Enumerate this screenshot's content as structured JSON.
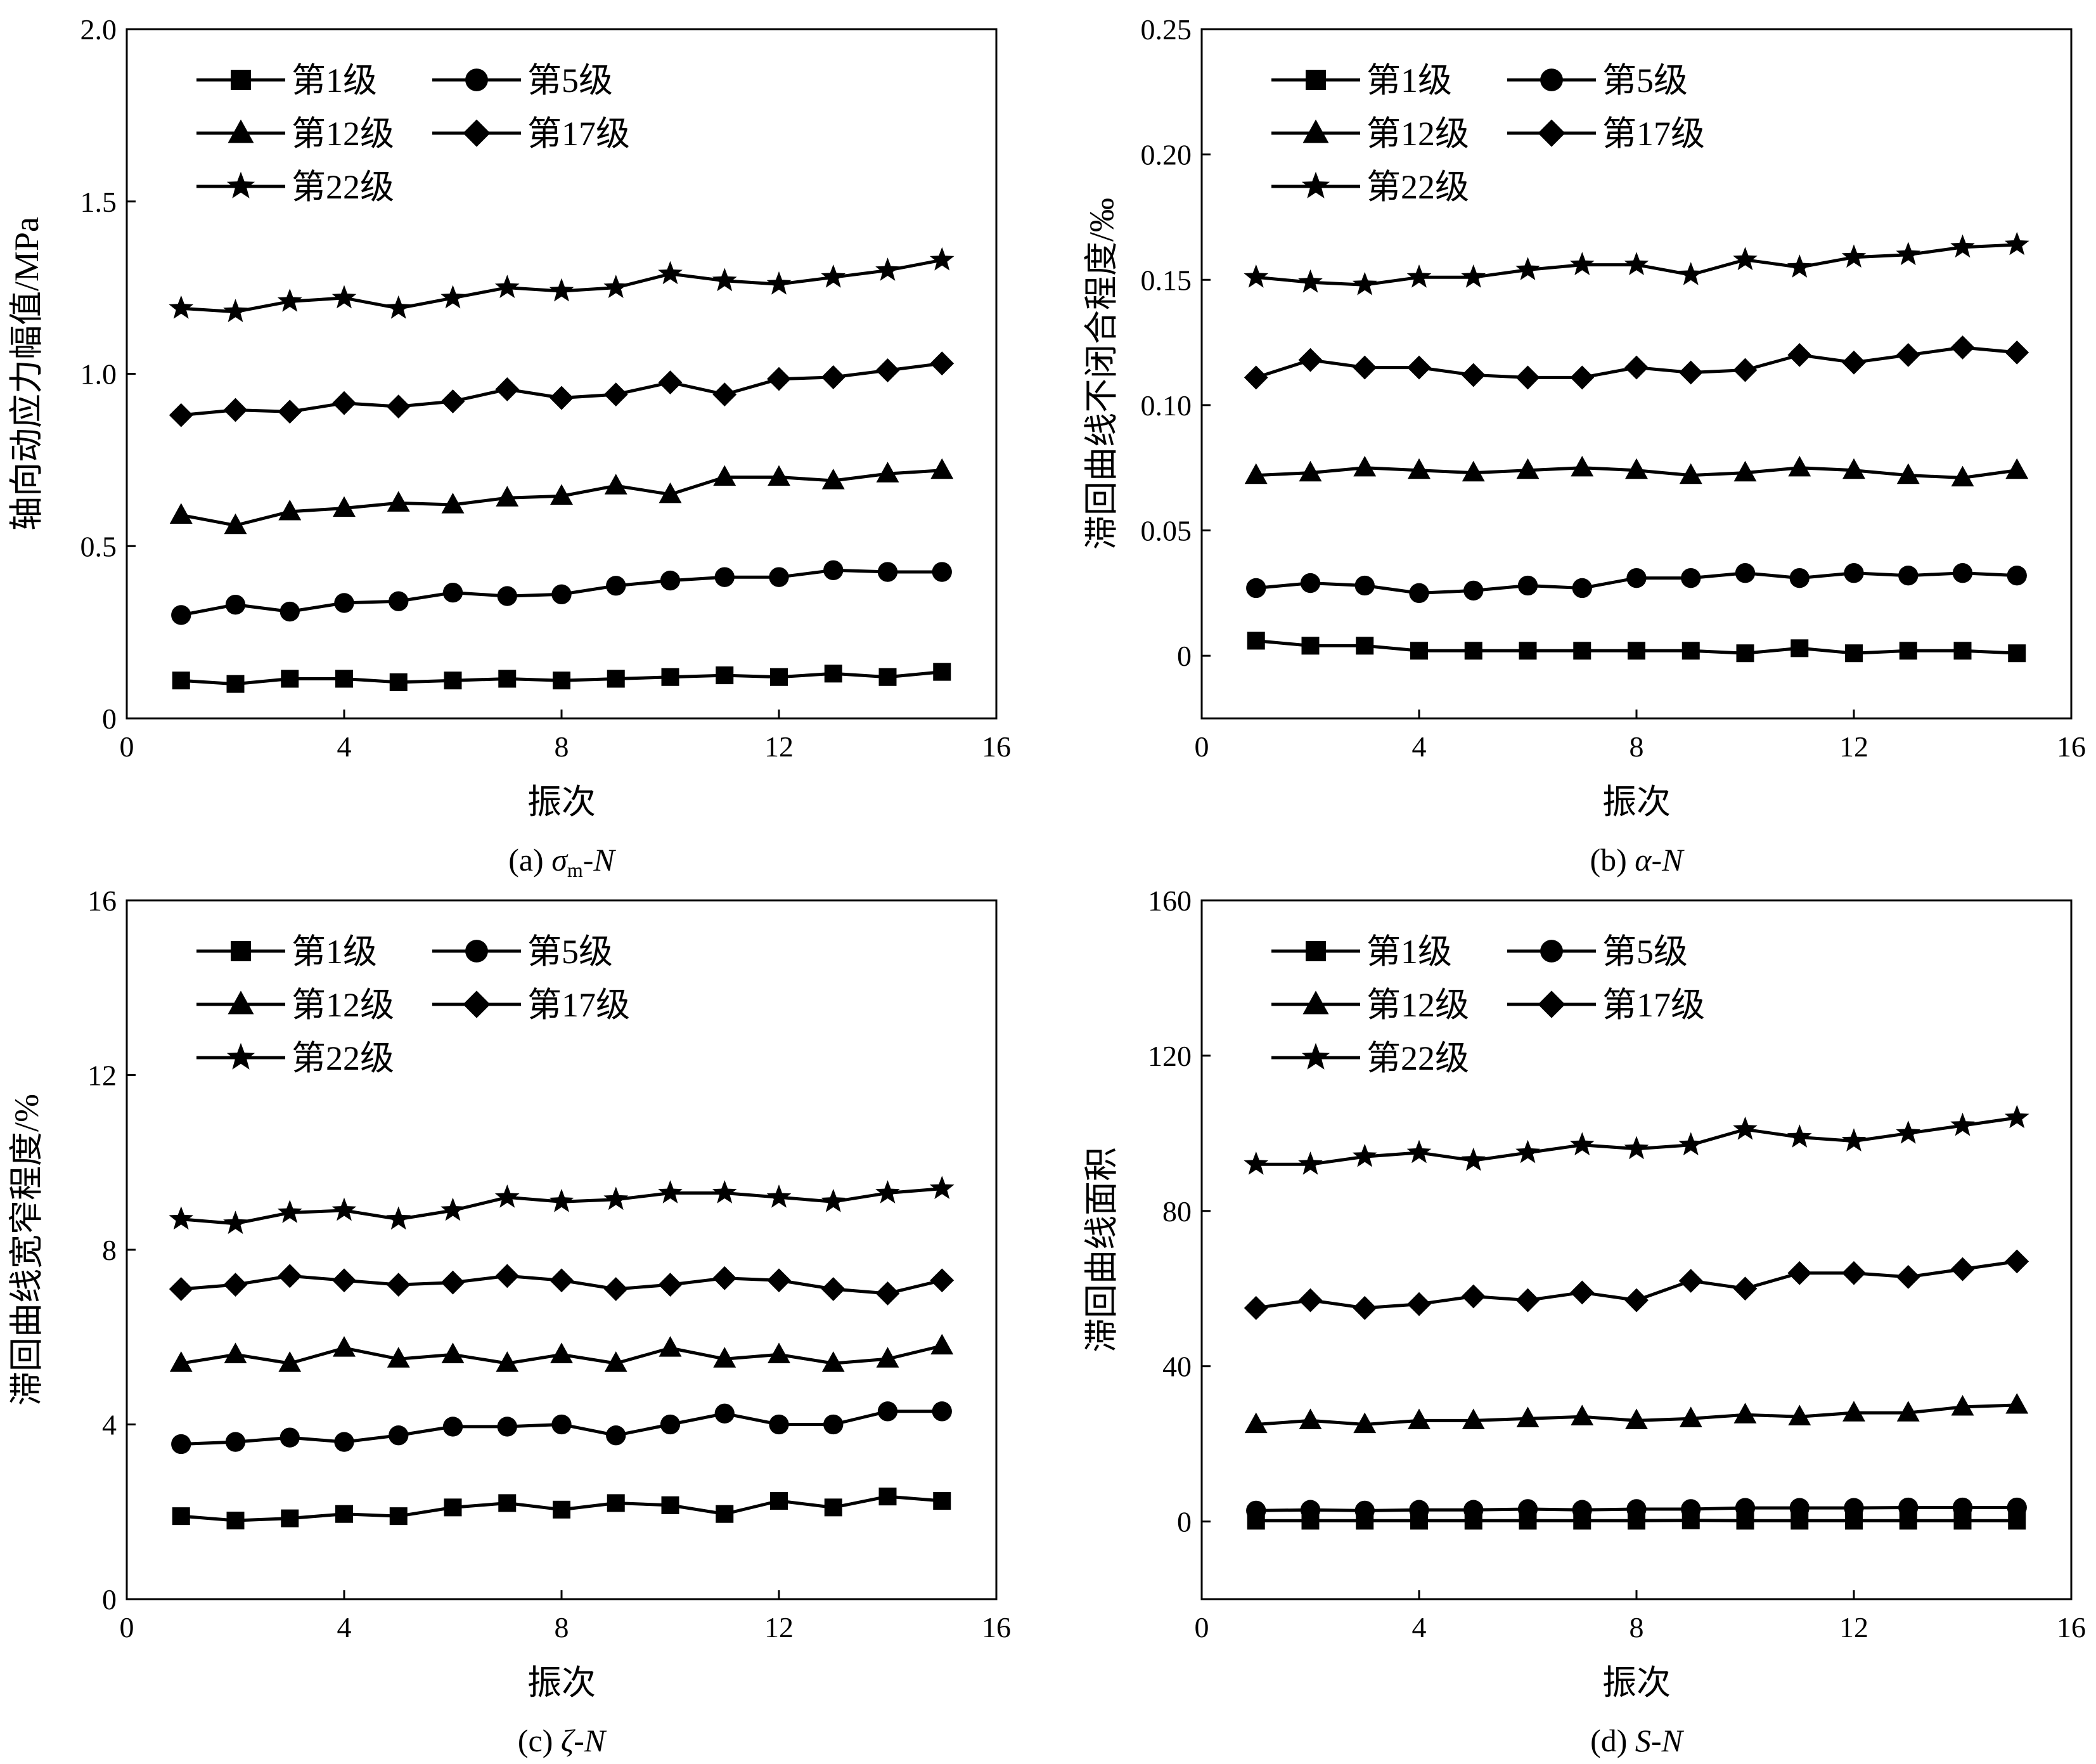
{
  "figure": {
    "background": "#ffffff",
    "line_color": "#000000",
    "panels": [
      {
        "id": "a",
        "caption": {
          "prefix": "(a) ",
          "symbol": "σ",
          "subscript": "m",
          "suffix": "-N"
        },
        "chart_data": {
          "type": "line",
          "xlabel": "振次",
          "ylabel": "轴向动应力幅值/MPa",
          "xlim": [
            0,
            16
          ],
          "ylim": [
            0,
            2.0
          ],
          "xticks": [
            "0",
            "4",
            "8",
            "12",
            "16"
          ],
          "yticks": [
            "0",
            "0.5",
            "1.0",
            "1.5",
            "2.0"
          ],
          "legend": "top-left",
          "x": [
            1,
            2,
            3,
            4,
            5,
            6,
            7,
            8,
            9,
            10,
            11,
            12,
            13,
            14,
            15
          ],
          "series": [
            {
              "name": "第1级",
              "marker": "square",
              "values": [
                0.11,
                0.1,
                0.115,
                0.115,
                0.105,
                0.11,
                0.115,
                0.11,
                0.115,
                0.12,
                0.125,
                0.12,
                0.13,
                0.12,
                0.135
              ]
            },
            {
              "name": "第5级",
              "marker": "circle",
              "values": [
                0.3,
                0.33,
                0.31,
                0.335,
                0.34,
                0.365,
                0.355,
                0.36,
                0.385,
                0.4,
                0.41,
                0.41,
                0.43,
                0.425,
                0.425
              ]
            },
            {
              "name": "第12级",
              "marker": "triangle",
              "values": [
                0.59,
                0.56,
                0.6,
                0.61,
                0.625,
                0.62,
                0.64,
                0.645,
                0.675,
                0.65,
                0.7,
                0.7,
                0.69,
                0.71,
                0.72
              ]
            },
            {
              "name": "第17级",
              "marker": "diamond",
              "values": [
                0.88,
                0.895,
                0.89,
                0.915,
                0.905,
                0.92,
                0.955,
                0.93,
                0.94,
                0.975,
                0.94,
                0.985,
                0.99,
                1.01,
                1.03
              ]
            },
            {
              "name": "第22级",
              "marker": "star",
              "values": [
                1.19,
                1.18,
                1.21,
                1.22,
                1.19,
                1.22,
                1.25,
                1.24,
                1.25,
                1.29,
                1.27,
                1.26,
                1.28,
                1.3,
                1.33
              ]
            }
          ]
        }
      },
      {
        "id": "b",
        "caption": {
          "prefix": "(b) ",
          "symbol": "α",
          "subscript": "",
          "suffix": "-N"
        },
        "chart_data": {
          "type": "line",
          "xlabel": "振次",
          "ylabel": "滞回曲线不闭合程度/‰",
          "xlim": [
            0,
            16
          ],
          "ylim": [
            -0.025,
            0.25
          ],
          "xticks": [
            "0",
            "4",
            "8",
            "12",
            "16"
          ],
          "yticks": [
            "0",
            "0.05",
            "0.10",
            "0.15",
            "0.20",
            "0.25"
          ],
          "legend": "top-left",
          "x": [
            1,
            2,
            3,
            4,
            5,
            6,
            7,
            8,
            9,
            10,
            11,
            12,
            13,
            14,
            15
          ],
          "series": [
            {
              "name": "第1级",
              "marker": "square",
              "values": [
                0.006,
                0.004,
                0.004,
                0.002,
                0.002,
                0.002,
                0.002,
                0.002,
                0.002,
                0.001,
                0.003,
                0.001,
                0.002,
                0.002,
                0.001
              ]
            },
            {
              "name": "第5级",
              "marker": "circle",
              "values": [
                0.027,
                0.029,
                0.028,
                0.025,
                0.026,
                0.028,
                0.027,
                0.031,
                0.031,
                0.033,
                0.031,
                0.033,
                0.032,
                0.033,
                0.032
              ]
            },
            {
              "name": "第12级",
              "marker": "triangle",
              "values": [
                0.072,
                0.073,
                0.075,
                0.074,
                0.073,
                0.074,
                0.075,
                0.074,
                0.072,
                0.073,
                0.075,
                0.074,
                0.072,
                0.071,
                0.074
              ]
            },
            {
              "name": "第17级",
              "marker": "diamond",
              "values": [
                0.111,
                0.118,
                0.115,
                0.115,
                0.112,
                0.111,
                0.111,
                0.115,
                0.113,
                0.114,
                0.12,
                0.117,
                0.12,
                0.123,
                0.121
              ]
            },
            {
              "name": "第22级",
              "marker": "star",
              "values": [
                0.151,
                0.149,
                0.148,
                0.151,
                0.151,
                0.154,
                0.156,
                0.156,
                0.152,
                0.158,
                0.155,
                0.159,
                0.16,
                0.163,
                0.164
              ]
            }
          ]
        }
      },
      {
        "id": "c",
        "caption": {
          "prefix": "(c) ",
          "symbol": "ζ",
          "subscript": "",
          "suffix": "-N"
        },
        "chart_data": {
          "type": "line",
          "xlabel": "振次",
          "ylabel": "滞回曲线宽窄程度/%",
          "xlim": [
            0,
            16
          ],
          "ylim": [
            0,
            16
          ],
          "xticks": [
            "0",
            "4",
            "8",
            "12",
            "16"
          ],
          "yticks": [
            "0",
            "4",
            "8",
            "12",
            "16"
          ],
          "legend": "top-left",
          "x": [
            1,
            2,
            3,
            4,
            5,
            6,
            7,
            8,
            9,
            10,
            11,
            12,
            13,
            14,
            15
          ],
          "series": [
            {
              "name": "第1级",
              "marker": "square",
              "values": [
                1.9,
                1.8,
                1.85,
                1.95,
                1.9,
                2.1,
                2.2,
                2.05,
                2.2,
                2.15,
                1.95,
                2.25,
                2.1,
                2.35,
                2.25
              ]
            },
            {
              "name": "第5级",
              "marker": "circle",
              "values": [
                3.55,
                3.6,
                3.7,
                3.6,
                3.75,
                3.95,
                3.95,
                4.0,
                3.75,
                4.0,
                4.25,
                4.0,
                4.0,
                4.3,
                4.3
              ]
            },
            {
              "name": "第12级",
              "marker": "triangle",
              "values": [
                5.4,
                5.6,
                5.4,
                5.75,
                5.5,
                5.6,
                5.4,
                5.6,
                5.4,
                5.75,
                5.5,
                5.6,
                5.4,
                5.5,
                5.8
              ]
            },
            {
              "name": "第17级",
              "marker": "diamond",
              "values": [
                7.1,
                7.2,
                7.4,
                7.3,
                7.2,
                7.25,
                7.4,
                7.3,
                7.1,
                7.2,
                7.35,
                7.3,
                7.1,
                7.0,
                7.3
              ]
            },
            {
              "name": "第22级",
              "marker": "star",
              "values": [
                8.7,
                8.6,
                8.85,
                8.9,
                8.7,
                8.9,
                9.2,
                9.1,
                9.15,
                9.3,
                9.3,
                9.2,
                9.1,
                9.3,
                9.4
              ]
            }
          ]
        }
      },
      {
        "id": "d",
        "caption": {
          "prefix": "(d) ",
          "symbol": "S",
          "subscript": "",
          "suffix": "-N"
        },
        "chart_data": {
          "type": "line",
          "xlabel": "振次",
          "ylabel": "滞回曲线面积",
          "xlim": [
            0,
            16
          ],
          "ylim": [
            -20,
            160
          ],
          "xticks": [
            "0",
            "4",
            "8",
            "12",
            "16"
          ],
          "yticks": [
            "0",
            "40",
            "80",
            "120",
            "160"
          ],
          "legend": "top-left",
          "x": [
            1,
            2,
            3,
            4,
            5,
            6,
            7,
            8,
            9,
            10,
            11,
            12,
            13,
            14,
            15
          ],
          "series": [
            {
              "name": "第1级",
              "marker": "square",
              "values": [
                0.2,
                0.2,
                0.2,
                0.2,
                0.2,
                0.2,
                0.2,
                0.2,
                0.3,
                0.2,
                0.2,
                0.2,
                0.2,
                0.2,
                0.2
              ]
            },
            {
              "name": "第5级",
              "marker": "circle",
              "values": [
                2.8,
                3.0,
                2.8,
                3.0,
                3.0,
                3.2,
                3.0,
                3.2,
                3.2,
                3.5,
                3.5,
                3.5,
                3.6,
                3.6,
                3.6
              ]
            },
            {
              "name": "第12级",
              "marker": "triangle",
              "values": [
                25,
                26,
                25,
                26,
                26,
                26.5,
                27,
                26,
                26.5,
                27.5,
                27,
                28,
                28,
                29.5,
                30
              ]
            },
            {
              "name": "第17级",
              "marker": "diamond",
              "values": [
                55,
                57,
                55,
                56,
                58,
                57,
                59,
                57,
                62,
                60,
                64,
                64,
                63,
                65,
                67
              ]
            },
            {
              "name": "第22级",
              "marker": "star",
              "values": [
                92,
                92,
                94,
                95,
                93,
                95,
                97,
                96,
                97,
                101,
                99,
                98,
                100,
                102,
                104
              ]
            }
          ]
        }
      }
    ]
  }
}
